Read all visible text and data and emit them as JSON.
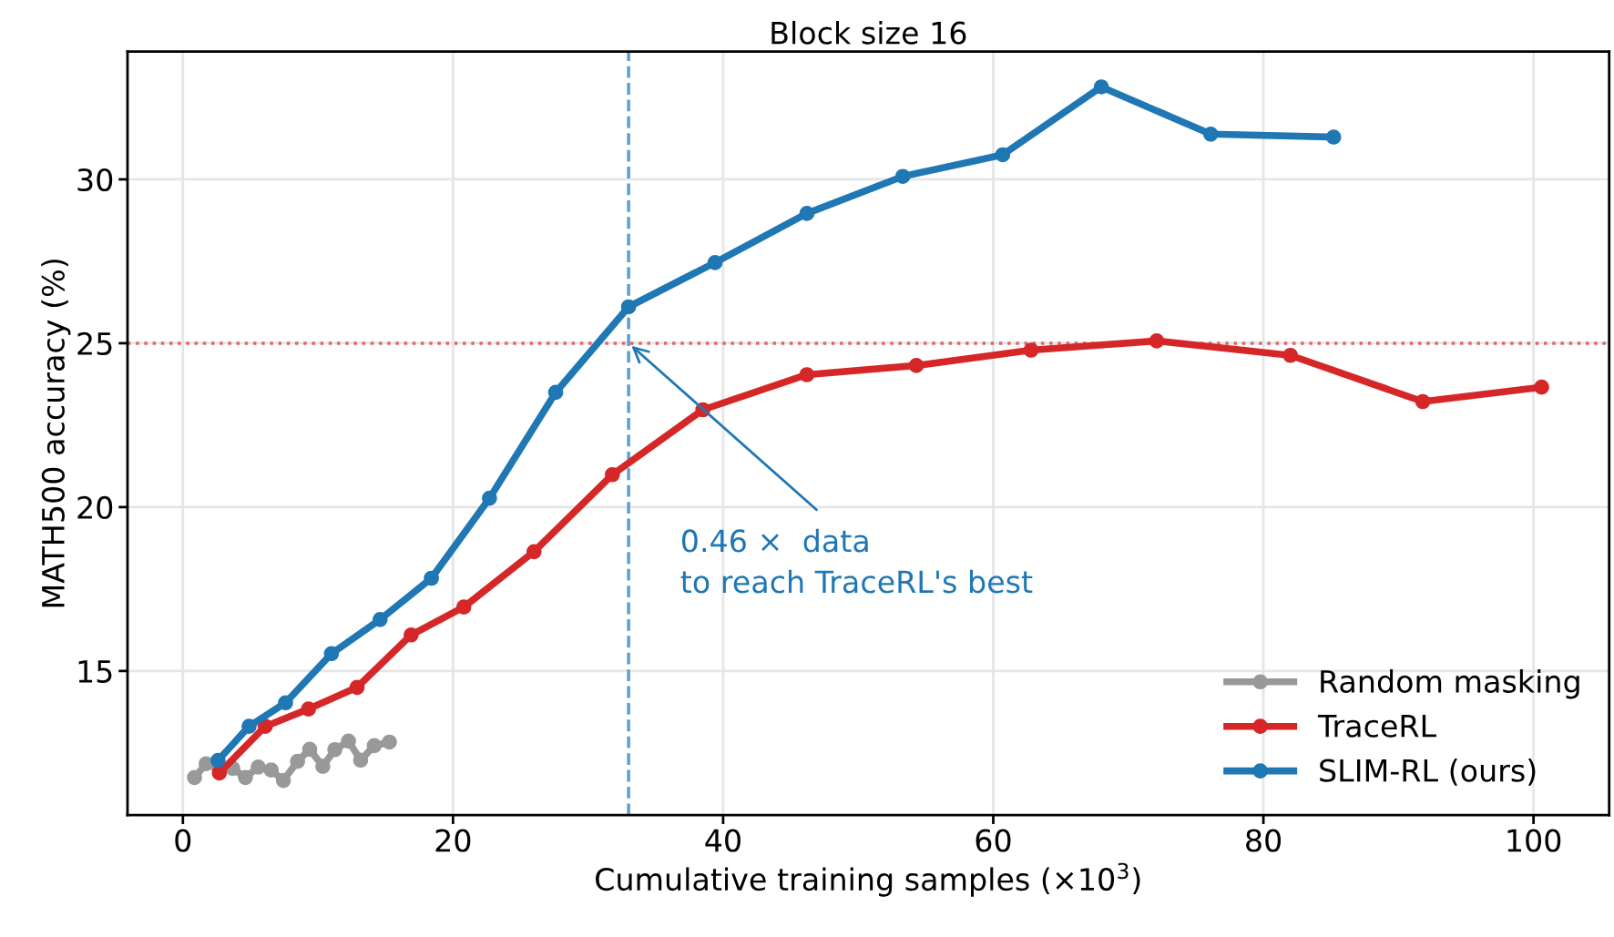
{
  "chart_data": {
    "type": "line",
    "title": "Block size 16",
    "xlabel": "Cumulative training samples (×10$^{3}$)",
    "ylabel": "MATH500 accuracy (%)",
    "series": [
      {
        "name": "Random masking",
        "color": "#999999",
        "x": [
          0.86,
          1.72,
          2.7,
          3.69,
          4.63,
          5.58,
          6.54,
          7.44,
          8.49,
          9.39,
          10.36,
          11.25,
          12.26,
          13.16,
          14.17,
          15.29
        ],
        "values": [
          11.75,
          12.17,
          12.0,
          12.03,
          11.75,
          12.07,
          11.98,
          11.66,
          12.24,
          12.61,
          12.09,
          12.6,
          12.86,
          12.28,
          12.72,
          12.83
        ]
      },
      {
        "name": "TraceRL",
        "color": "#d62728",
        "x": [
          2.7,
          6.1,
          9.3,
          12.9,
          16.9,
          20.8,
          26.0,
          31.8,
          38.5,
          46.2,
          54.3,
          62.8,
          72.1,
          82.0,
          91.8,
          100.6
        ],
        "values": [
          11.89,
          13.31,
          13.84,
          14.5,
          16.1,
          16.95,
          18.64,
          20.99,
          22.97,
          24.04,
          24.32,
          24.79,
          25.07,
          24.63,
          23.22,
          23.66
        ]
      },
      {
        "name": "SLIM-RL (ours)",
        "color": "#1f77b4",
        "x": [
          2.6,
          4.9,
          7.6,
          11.0,
          14.6,
          18.4,
          22.7,
          27.6,
          33.0,
          39.4,
          46.2,
          53.3,
          60.7,
          68.0,
          76.1,
          85.2
        ],
        "values": [
          12.27,
          13.31,
          14.03,
          15.53,
          16.57,
          17.83,
          20.27,
          23.5,
          26.11,
          27.46,
          28.96,
          30.09,
          30.75,
          32.82,
          31.38,
          31.29
        ]
      }
    ],
    "ref_lines": [
      {
        "axis": "x",
        "value": 33.0,
        "color": "#5a9fd0",
        "line_style": "dashed"
      },
      {
        "axis": "y",
        "value": 25,
        "color": "#e06666",
        "line_style": "dotted"
      }
    ],
    "annotations": [
      "0.46 ×  data\nto reach TraceRL's best"
    ],
    "xlim": [
      -4.1,
      105.6
    ],
    "ylim": [
      10.6,
      33.9
    ],
    "xticks": [
      0,
      20,
      40,
      60,
      80,
      100
    ],
    "yticks": [
      15,
      20,
      25,
      30
    ],
    "grid": true,
    "legend": "bottom right",
    "marker": "circle",
    "line_style": "solid"
  }
}
